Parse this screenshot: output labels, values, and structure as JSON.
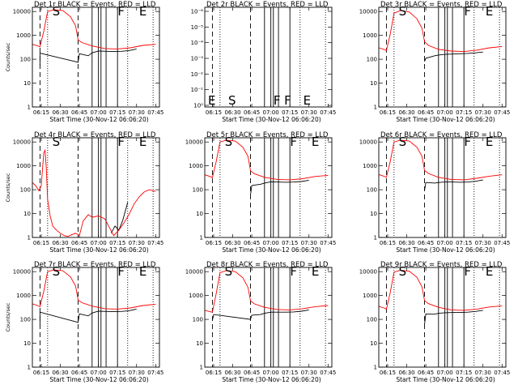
{
  "chart_data": [
    {
      "type": "line",
      "title": "Det 1r BLACK = Events, RED = LLD",
      "xlabel": "Start Time (30-Nov-12 06:06:20)",
      "ylabel": "Counts/sec",
      "xlim": [
        "06:08",
        "07:48"
      ],
      "ylim": [
        1,
        15000
      ],
      "yscale": "log",
      "x_ticks": [
        "06:15",
        "06:30",
        "06:45",
        "07:00",
        "07:15",
        "07:30",
        "07:45"
      ],
      "y_ticks": [
        "1",
        "10",
        "100",
        "1000",
        "10000"
      ],
      "markers": [
        "S",
        "F",
        "E"
      ],
      "dashed_lines": [
        "06:14",
        "06:44"
      ],
      "dotted_lines": [
        "06:20",
        "07:23",
        "07:43"
      ],
      "solid_lines": [
        "06:55",
        "07:00",
        "07:02",
        "07:06",
        "07:15"
      ],
      "colors": {
        "events": "#000000",
        "lld": "#ff0000"
      },
      "series": [
        {
          "name": "Events",
          "x": [
            "06:14",
            "06:14",
            "06:44",
            "06:45",
            "06:52",
            "06:55",
            "07:00",
            "07:06",
            "07:12",
            "07:18",
            "07:24",
            "07:30"
          ],
          "y": [
            55,
            180,
            75,
            170,
            140,
            185,
            220,
            215,
            210,
            215,
            230,
            270
          ]
        },
        {
          "name": "LLD",
          "x": [
            "06:08",
            "06:12",
            "06:14",
            "06:17",
            "06:20",
            "06:25",
            "06:32",
            "06:38",
            "06:42",
            "06:44",
            "06:47",
            "06:55",
            "07:05",
            "07:15",
            "07:25",
            "07:35",
            "07:45"
          ],
          "y": [
            420,
            370,
            330,
            1500,
            10000,
            12000,
            11000,
            6000,
            2500,
            650,
            500,
            360,
            280,
            270,
            300,
            380,
            420
          ]
        }
      ]
    },
    {
      "type": "line",
      "title": "Det 2r BLACK = Events, RED = LLD",
      "xlabel": "Start Time (30-Nov-12 06:06:20)",
      "ylabel": "",
      "xlim": [
        "06:08",
        "07:48"
      ],
      "ylim": [
        1e-06,
        1.2
      ],
      "yscale": "log",
      "x_ticks": [
        "06:15",
        "06:30",
        "06:45",
        "07:00",
        "07:15",
        "07:30",
        "07:45"
      ],
      "y_ticks": [
        "10⁰",
        "10⁻¹",
        "10⁻²",
        "10⁻³",
        "10⁻⁴",
        "10⁻⁵",
        "10⁻⁶"
      ],
      "markers": [
        "E",
        "S",
        "F",
        "F",
        "E"
      ],
      "dashed_lines": [
        "06:14",
        "06:44"
      ],
      "dotted_lines": [
        "06:20",
        "07:23",
        "07:43"
      ],
      "solid_lines": [
        "06:55",
        "07:00",
        "07:02",
        "07:06",
        "07:15"
      ],
      "colors": {
        "events": "#000000",
        "lld": "#ff0000"
      },
      "series": []
    },
    {
      "type": "line",
      "title": "Det 3r BLACK = Events, RED = LLD",
      "xlabel": "Start Time (30-Nov-12 06:06:20)",
      "ylabel": "",
      "xlim": [
        "06:08",
        "07:48"
      ],
      "ylim": [
        1,
        15000
      ],
      "yscale": "log",
      "x_ticks": [
        "06:15",
        "06:30",
        "06:45",
        "07:00",
        "07:15",
        "07:30",
        "07:45"
      ],
      "y_ticks": [
        "1",
        "10",
        "100",
        "1000",
        "10000"
      ],
      "markers": [
        "S",
        "F",
        "E"
      ],
      "dashed_lines": [
        "06:14",
        "06:44"
      ],
      "dotted_lines": [
        "06:20",
        "07:23",
        "07:43"
      ],
      "solid_lines": [
        "06:55",
        "07:00",
        "07:02",
        "07:06",
        "07:15"
      ],
      "colors": {
        "events": "#000000",
        "lld": "#ff0000"
      },
      "series": [
        {
          "name": "Events",
          "x": [
            "06:44",
            "06:45",
            "06:52",
            "06:55",
            "07:00",
            "07:06",
            "07:12",
            "07:18",
            "07:24",
            "07:30"
          ],
          "y": [
            80,
            110,
            140,
            150,
            160,
            165,
            170,
            175,
            185,
            200
          ]
        },
        {
          "name": "LLD",
          "x": [
            "06:08",
            "06:12",
            "06:14",
            "06:17",
            "06:20",
            "06:25",
            "06:32",
            "06:38",
            "06:42",
            "06:44",
            "06:47",
            "06:55",
            "07:05",
            "07:15",
            "07:25",
            "07:35",
            "07:45"
          ],
          "y": [
            300,
            260,
            230,
            1100,
            8500,
            11000,
            9500,
            5000,
            2000,
            550,
            380,
            260,
            220,
            210,
            240,
            300,
            340
          ]
        }
      ]
    },
    {
      "type": "line",
      "title": "Det 4r BLACK = Events, RED = LLD",
      "xlabel": "Start Time (30-Nov-12 06:06:20)",
      "ylabel": "Counts/sec",
      "xlim": [
        "06:08",
        "07:48"
      ],
      "ylim": [
        1,
        15000
      ],
      "yscale": "log",
      "x_ticks": [
        "06:15",
        "06:30",
        "06:45",
        "07:00",
        "07:15",
        "07:30",
        "07:45"
      ],
      "y_ticks": [
        "1",
        "10",
        "100",
        "1000",
        "10000"
      ],
      "markers": [
        "S",
        "F",
        "E"
      ],
      "dashed_lines": [
        "06:14",
        "06:44"
      ],
      "dotted_lines": [
        "06:20",
        "07:23",
        "07:43"
      ],
      "solid_lines": [
        "06:55",
        "07:00",
        "07:02",
        "07:06",
        "07:15"
      ],
      "colors": {
        "events": "#000000",
        "lld": "#ff0000"
      },
      "series": [
        {
          "name": "Events",
          "x": [
            "07:10",
            "07:13",
            "07:16",
            "07:19",
            "07:21",
            "07:23"
          ],
          "y": [
            1.5,
            3,
            2,
            5,
            12,
            30
          ]
        },
        {
          "name": "LLD",
          "x": [
            "06:08",
            "06:11",
            "06:13",
            "06:15",
            "06:16",
            "06:17",
            "06:18",
            "06:19",
            "06:20",
            "06:22",
            "06:24",
            "06:27",
            "06:30",
            "06:33",
            "06:36",
            "06:39",
            "06:42",
            "06:45",
            "06:48",
            "06:52",
            "06:55",
            "07:00",
            "07:05",
            "07:08",
            "07:12",
            "07:16",
            "07:20",
            "07:24",
            "07:28",
            "07:32",
            "07:36",
            "07:40",
            "07:45"
          ],
          "y": [
            200,
            140,
            90,
            150,
            800,
            3500,
            4500,
            700,
            40,
            8,
            3,
            2,
            1.5,
            1.2,
            1.1,
            1.3,
            1.5,
            1.2,
            5,
            9,
            7,
            8,
            6,
            3,
            1.2,
            2,
            4,
            9,
            25,
            50,
            80,
            100,
            85
          ]
        }
      ]
    },
    {
      "type": "line",
      "title": "Det 5r BLACK = Events, RED = LLD",
      "xlabel": "Start Time (30-Nov-12 06:06:20)",
      "ylabel": "",
      "xlim": [
        "06:08",
        "07:48"
      ],
      "ylim": [
        1,
        15000
      ],
      "yscale": "log",
      "x_ticks": [
        "06:15",
        "06:30",
        "06:45",
        "07:00",
        "07:15",
        "07:30",
        "07:45"
      ],
      "y_ticks": [
        "1",
        "10",
        "100",
        "1000",
        "10000"
      ],
      "markers": [
        "S",
        "F",
        "E"
      ],
      "dashed_lines": [
        "06:14",
        "06:44"
      ],
      "dotted_lines": [
        "06:20",
        "07:23",
        "07:43"
      ],
      "solid_lines": [
        "06:55",
        "07:00",
        "07:02",
        "07:06",
        "07:15"
      ],
      "colors": {
        "events": "#000000",
        "lld": "#ff0000"
      },
      "series": [
        {
          "name": "Events",
          "x": [
            "06:44",
            "06:45",
            "06:52",
            "06:55",
            "07:00",
            "07:06",
            "07:12",
            "07:18",
            "07:24",
            "07:30"
          ],
          "y": [
            60,
            150,
            170,
            190,
            215,
            210,
            205,
            210,
            220,
            250
          ]
        },
        {
          "name": "LLD",
          "x": [
            "06:08",
            "06:12",
            "06:14",
            "06:17",
            "06:20",
            "06:25",
            "06:32",
            "06:38",
            "06:42",
            "06:44",
            "06:47",
            "06:55",
            "07:05",
            "07:15",
            "07:25",
            "07:35",
            "07:45"
          ],
          "y": [
            420,
            360,
            320,
            1500,
            10000,
            12000,
            11000,
            6000,
            2500,
            620,
            470,
            330,
            270,
            260,
            290,
            360,
            400
          ]
        }
      ]
    },
    {
      "type": "line",
      "title": "Det 6r BLACK = Events, RED = LLD",
      "xlabel": "Start Time (30-Nov-12 06:06:20)",
      "ylabel": "",
      "xlim": [
        "06:08",
        "07:48"
      ],
      "ylim": [
        1,
        15000
      ],
      "yscale": "log",
      "x_ticks": [
        "06:15",
        "06:30",
        "06:45",
        "07:00",
        "07:15",
        "07:30",
        "07:45"
      ],
      "y_ticks": [
        "1",
        "10",
        "100",
        "1000",
        "10000"
      ],
      "markers": [
        "S",
        "F",
        "E"
      ],
      "dashed_lines": [
        "06:14",
        "06:44"
      ],
      "dotted_lines": [
        "06:20",
        "07:23",
        "07:43"
      ],
      "solid_lines": [
        "06:55",
        "07:00",
        "07:02",
        "07:06",
        "07:15"
      ],
      "colors": {
        "events": "#000000",
        "lld": "#ff0000"
      },
      "series": [
        {
          "name": "Events",
          "x": [
            "06:44",
            "06:45",
            "06:52",
            "06:55",
            "07:00",
            "07:06",
            "07:12",
            "07:18",
            "07:24",
            "07:30"
          ],
          "y": [
            90,
            200,
            190,
            200,
            210,
            210,
            205,
            210,
            225,
            255
          ]
        },
        {
          "name": "LLD",
          "x": [
            "06:08",
            "06:12",
            "06:14",
            "06:17",
            "06:20",
            "06:25",
            "06:32",
            "06:38",
            "06:42",
            "06:44",
            "06:47",
            "06:55",
            "07:05",
            "07:15",
            "07:25",
            "07:35",
            "07:45"
          ],
          "y": [
            430,
            370,
            330,
            1500,
            10000,
            12000,
            11000,
            6000,
            2500,
            650,
            480,
            330,
            270,
            260,
            300,
            370,
            420
          ]
        }
      ]
    },
    {
      "type": "line",
      "title": "Det 7r BLACK = Events, RED = LLD",
      "xlabel": "Start Time (30-Nov-12 06:06:20)",
      "ylabel": "Counts/sec",
      "xlim": [
        "06:08",
        "07:48"
      ],
      "ylim": [
        1,
        15000
      ],
      "yscale": "log",
      "x_ticks": [
        "06:15",
        "06:30",
        "06:45",
        "07:00",
        "07:15",
        "07:30",
        "07:45"
      ],
      "y_ticks": [
        "1",
        "10",
        "100",
        "1000",
        "10000"
      ],
      "markers": [
        "S",
        "F",
        "E"
      ],
      "dashed_lines": [
        "06:14",
        "06:44"
      ],
      "dotted_lines": [
        "06:20",
        "07:23",
        "07:43"
      ],
      "solid_lines": [
        "06:55",
        "07:00",
        "07:02",
        "07:06",
        "07:15"
      ],
      "colors": {
        "events": "#000000",
        "lld": "#ff0000"
      },
      "series": [
        {
          "name": "Events",
          "x": [
            "06:14",
            "06:14",
            "06:44",
            "06:45",
            "06:52",
            "06:55",
            "07:00",
            "07:06",
            "07:12",
            "07:18",
            "07:24",
            "07:30"
          ],
          "y": [
            60,
            200,
            75,
            170,
            140,
            185,
            220,
            215,
            210,
            215,
            230,
            270
          ]
        },
        {
          "name": "LLD",
          "x": [
            "06:08",
            "06:12",
            "06:14",
            "06:17",
            "06:20",
            "06:25",
            "06:32",
            "06:38",
            "06:42",
            "06:44",
            "06:47",
            "06:55",
            "07:05",
            "07:15",
            "07:25",
            "07:35",
            "07:45"
          ],
          "y": [
            450,
            380,
            340,
            1500,
            10000,
            12000,
            11000,
            6000,
            2500,
            650,
            500,
            360,
            280,
            270,
            300,
            380,
            430
          ]
        }
      ]
    },
    {
      "type": "line",
      "title": "Det 8r BLACK = Events, RED = LLD",
      "xlabel": "Start Time (30-Nov-12 06:06:20)",
      "ylabel": "",
      "xlim": [
        "06:08",
        "07:48"
      ],
      "ylim": [
        1,
        15000
      ],
      "yscale": "log",
      "x_ticks": [
        "06:15",
        "06:30",
        "06:45",
        "07:00",
        "07:15",
        "07:30",
        "07:45"
      ],
      "y_ticks": [
        "1",
        "10",
        "100",
        "1000",
        "10000"
      ],
      "markers": [
        "S",
        "F",
        "E"
      ],
      "dashed_lines": [
        "06:14",
        "06:44"
      ],
      "dotted_lines": [
        "06:20",
        "07:23",
        "07:43"
      ],
      "solid_lines": [
        "06:55",
        "07:00",
        "07:02",
        "07:06",
        "07:15"
      ],
      "colors": {
        "events": "#000000",
        "lld": "#ff0000"
      },
      "series": [
        {
          "name": "Events",
          "x": [
            "06:14",
            "06:15",
            "06:44",
            "06:45",
            "06:52",
            "06:55",
            "07:00",
            "07:06",
            "07:12",
            "07:18",
            "07:24",
            "07:30"
          ],
          "y": [
            90,
            160,
            100,
            150,
            160,
            180,
            200,
            200,
            200,
            205,
            220,
            250
          ]
        },
        {
          "name": "LLD",
          "x": [
            "06:08",
            "06:12",
            "06:14",
            "06:17",
            "06:20",
            "06:25",
            "06:32",
            "06:38",
            "06:42",
            "06:44",
            "06:47",
            "06:55",
            "07:05",
            "07:15",
            "07:25",
            "07:35",
            "07:45"
          ],
          "y": [
            240,
            210,
            200,
            1200,
            9000,
            11000,
            10000,
            5500,
            2200,
            600,
            450,
            320,
            260,
            250,
            280,
            340,
            380
          ]
        }
      ]
    },
    {
      "type": "line",
      "title": "Det 9r BLACK = Events, RED = LLD",
      "xlabel": "Start Time (30-Nov-12 06:06:20)",
      "ylabel": "",
      "xlim": [
        "06:08",
        "07:48"
      ],
      "ylim": [
        1,
        15000
      ],
      "yscale": "log",
      "x_ticks": [
        "06:15",
        "06:30",
        "06:45",
        "07:00",
        "07:15",
        "07:30",
        "07:45"
      ],
      "y_ticks": [
        "1",
        "10",
        "100",
        "1000",
        "10000"
      ],
      "markers": [
        "S",
        "F",
        "E"
      ],
      "dashed_lines": [
        "06:14",
        "06:44"
      ],
      "dotted_lines": [
        "06:20",
        "07:23",
        "07:43"
      ],
      "solid_lines": [
        "06:55",
        "07:00",
        "07:02",
        "07:06",
        "07:15"
      ],
      "colors": {
        "events": "#000000",
        "lld": "#ff0000"
      },
      "series": [
        {
          "name": "Events",
          "x": [
            "06:44",
            "06:45",
            "06:52",
            "06:55",
            "07:00",
            "07:06",
            "07:12",
            "07:18",
            "07:24",
            "07:30"
          ],
          "y": [
            60,
            170,
            165,
            180,
            190,
            195,
            195,
            200,
            215,
            240
          ]
        },
        {
          "name": "LLD",
          "x": [
            "06:08",
            "06:12",
            "06:14",
            "06:17",
            "06:20",
            "06:25",
            "06:32",
            "06:38",
            "06:42",
            "06:44",
            "06:47",
            "06:55",
            "07:05",
            "07:15",
            "07:25",
            "07:35",
            "07:45"
          ],
          "y": [
            350,
            300,
            270,
            1300,
            9500,
            11500,
            10500,
            5800,
            2300,
            620,
            460,
            320,
            250,
            240,
            270,
            330,
            370
          ]
        }
      ]
    }
  ]
}
